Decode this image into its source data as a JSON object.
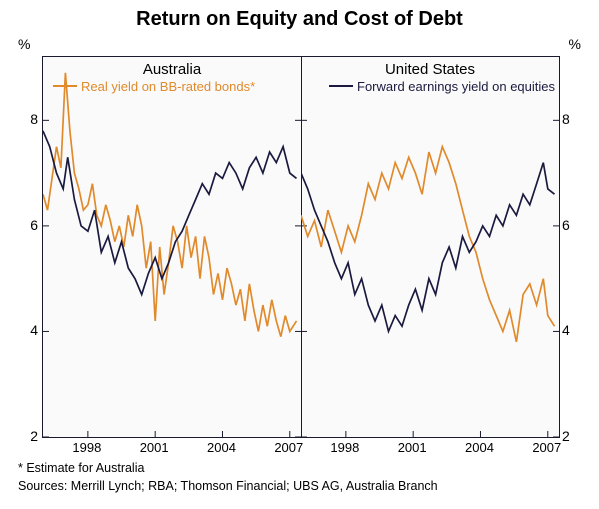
{
  "title": "Return on Equity and Cost of Debt",
  "title_fontsize": 20,
  "y_unit": "%",
  "ylim": [
    2,
    9.2
  ],
  "ytick_values": [
    2,
    4,
    6,
    8
  ],
  "x_range": [
    1996,
    2007.5
  ],
  "x_ticks": [
    1998,
    2001,
    2004,
    2007
  ],
  "background_color": "#fafafa",
  "border_color": "#1a1a2e",
  "panels": {
    "left": {
      "title": "Australia",
      "legend": {
        "text": "Real yield on BB-rated bonds*",
        "color": "#e08a2c"
      }
    },
    "right": {
      "title": "United States",
      "legend": {
        "text": "Forward earnings yield on equities",
        "color": "#1a1a40"
      }
    }
  },
  "series": {
    "aus_bonds": {
      "color": "#e08a2c",
      "width": 1.7,
      "data": [
        [
          1996.0,
          6.6
        ],
        [
          1996.2,
          6.3
        ],
        [
          1996.4,
          6.9
        ],
        [
          1996.6,
          7.5
        ],
        [
          1996.8,
          7.1
        ],
        [
          1997.0,
          8.9
        ],
        [
          1997.2,
          7.8
        ],
        [
          1997.4,
          7.0
        ],
        [
          1997.6,
          6.7
        ],
        [
          1997.8,
          6.3
        ],
        [
          1998.0,
          6.4
        ],
        [
          1998.2,
          6.8
        ],
        [
          1998.4,
          6.2
        ],
        [
          1998.6,
          6.0
        ],
        [
          1998.8,
          6.4
        ],
        [
          1999.0,
          6.1
        ],
        [
          1999.2,
          5.7
        ],
        [
          1999.4,
          6.0
        ],
        [
          1999.6,
          5.6
        ],
        [
          1999.8,
          6.2
        ],
        [
          2000.0,
          5.8
        ],
        [
          2000.2,
          6.4
        ],
        [
          2000.4,
          6.0
        ],
        [
          2000.6,
          5.2
        ],
        [
          2000.8,
          5.7
        ],
        [
          2001.0,
          4.2
        ],
        [
          2001.2,
          5.6
        ],
        [
          2001.4,
          4.7
        ],
        [
          2001.6,
          5.3
        ],
        [
          2001.8,
          6.0
        ],
        [
          2002.0,
          5.7
        ],
        [
          2002.2,
          5.2
        ],
        [
          2002.4,
          6.0
        ],
        [
          2002.6,
          5.4
        ],
        [
          2002.8,
          5.8
        ],
        [
          2003.0,
          5.0
        ],
        [
          2003.2,
          5.8
        ],
        [
          2003.4,
          5.4
        ],
        [
          2003.6,
          4.7
        ],
        [
          2003.8,
          5.1
        ],
        [
          2004.0,
          4.6
        ],
        [
          2004.2,
          5.2
        ],
        [
          2004.4,
          4.9
        ],
        [
          2004.6,
          4.5
        ],
        [
          2004.8,
          4.8
        ],
        [
          2005.0,
          4.2
        ],
        [
          2005.2,
          4.9
        ],
        [
          2005.4,
          4.4
        ],
        [
          2005.6,
          4.0
        ],
        [
          2005.8,
          4.5
        ],
        [
          2006.0,
          4.1
        ],
        [
          2006.2,
          4.6
        ],
        [
          2006.4,
          4.2
        ],
        [
          2006.6,
          3.9
        ],
        [
          2006.8,
          4.3
        ],
        [
          2007.0,
          4.0
        ],
        [
          2007.3,
          4.2
        ]
      ]
    },
    "aus_equities": {
      "color": "#1a1a40",
      "width": 1.7,
      "data": [
        [
          1996.0,
          7.8
        ],
        [
          1996.3,
          7.5
        ],
        [
          1996.6,
          7.0
        ],
        [
          1996.9,
          6.7
        ],
        [
          1997.1,
          7.3
        ],
        [
          1997.4,
          6.5
        ],
        [
          1997.7,
          6.0
        ],
        [
          1998.0,
          5.9
        ],
        [
          1998.3,
          6.3
        ],
        [
          1998.6,
          5.5
        ],
        [
          1998.9,
          5.8
        ],
        [
          1999.2,
          5.3
        ],
        [
          1999.5,
          5.7
        ],
        [
          1999.8,
          5.2
        ],
        [
          2000.1,
          5.0
        ],
        [
          2000.4,
          4.7
        ],
        [
          2000.7,
          5.1
        ],
        [
          2001.0,
          5.4
        ],
        [
          2001.3,
          5.0
        ],
        [
          2001.6,
          5.3
        ],
        [
          2001.9,
          5.7
        ],
        [
          2002.2,
          5.9
        ],
        [
          2002.5,
          6.2
        ],
        [
          2002.8,
          6.5
        ],
        [
          2003.1,
          6.8
        ],
        [
          2003.4,
          6.6
        ],
        [
          2003.7,
          7.0
        ],
        [
          2004.0,
          6.9
        ],
        [
          2004.3,
          7.2
        ],
        [
          2004.6,
          7.0
        ],
        [
          2004.9,
          6.7
        ],
        [
          2005.2,
          7.1
        ],
        [
          2005.5,
          7.3
        ],
        [
          2005.8,
          7.0
        ],
        [
          2006.1,
          7.4
        ],
        [
          2006.4,
          7.2
        ],
        [
          2006.7,
          7.5
        ],
        [
          2007.0,
          7.0
        ],
        [
          2007.3,
          6.9
        ]
      ]
    },
    "us_bonds": {
      "color": "#e08a2c",
      "width": 1.7,
      "data": [
        [
          1996.0,
          6.2
        ],
        [
          1996.3,
          5.8
        ],
        [
          1996.6,
          6.1
        ],
        [
          1996.9,
          5.6
        ],
        [
          1997.2,
          6.3
        ],
        [
          1997.5,
          5.9
        ],
        [
          1997.8,
          5.5
        ],
        [
          1998.1,
          6.0
        ],
        [
          1998.4,
          5.7
        ],
        [
          1998.7,
          6.2
        ],
        [
          1999.0,
          6.8
        ],
        [
          1999.3,
          6.5
        ],
        [
          1999.6,
          7.0
        ],
        [
          1999.9,
          6.7
        ],
        [
          2000.2,
          7.2
        ],
        [
          2000.5,
          6.9
        ],
        [
          2000.8,
          7.3
        ],
        [
          2001.1,
          7.0
        ],
        [
          2001.4,
          6.6
        ],
        [
          2001.7,
          7.4
        ],
        [
          2002.0,
          7.0
        ],
        [
          2002.3,
          7.5
        ],
        [
          2002.6,
          7.2
        ],
        [
          2002.9,
          6.8
        ],
        [
          2003.2,
          6.3
        ],
        [
          2003.5,
          5.8
        ],
        [
          2003.8,
          5.5
        ],
        [
          2004.1,
          5.0
        ],
        [
          2004.4,
          4.6
        ],
        [
          2004.7,
          4.3
        ],
        [
          2005.0,
          4.0
        ],
        [
          2005.3,
          4.4
        ],
        [
          2005.6,
          3.8
        ],
        [
          2005.9,
          4.7
        ],
        [
          2006.2,
          4.9
        ],
        [
          2006.5,
          4.5
        ],
        [
          2006.8,
          5.0
        ],
        [
          2007.0,
          4.3
        ],
        [
          2007.3,
          4.1
        ]
      ]
    },
    "us_equities": {
      "color": "#1a1a40",
      "width": 1.7,
      "data": [
        [
          1996.0,
          7.0
        ],
        [
          1996.3,
          6.7
        ],
        [
          1996.6,
          6.3
        ],
        [
          1996.9,
          6.0
        ],
        [
          1997.2,
          5.7
        ],
        [
          1997.5,
          5.3
        ],
        [
          1997.8,
          5.0
        ],
        [
          1998.1,
          5.3
        ],
        [
          1998.4,
          4.7
        ],
        [
          1998.7,
          5.0
        ],
        [
          1999.0,
          4.5
        ],
        [
          1999.3,
          4.2
        ],
        [
          1999.6,
          4.5
        ],
        [
          1999.9,
          4.0
        ],
        [
          2000.2,
          4.3
        ],
        [
          2000.5,
          4.1
        ],
        [
          2000.8,
          4.5
        ],
        [
          2001.1,
          4.8
        ],
        [
          2001.4,
          4.4
        ],
        [
          2001.7,
          5.0
        ],
        [
          2002.0,
          4.7
        ],
        [
          2002.3,
          5.3
        ],
        [
          2002.6,
          5.6
        ],
        [
          2002.9,
          5.2
        ],
        [
          2003.2,
          5.8
        ],
        [
          2003.5,
          5.5
        ],
        [
          2003.8,
          5.7
        ],
        [
          2004.1,
          6.0
        ],
        [
          2004.4,
          5.8
        ],
        [
          2004.7,
          6.2
        ],
        [
          2005.0,
          6.0
        ],
        [
          2005.3,
          6.4
        ],
        [
          2005.6,
          6.2
        ],
        [
          2005.9,
          6.6
        ],
        [
          2006.2,
          6.4
        ],
        [
          2006.5,
          6.8
        ],
        [
          2006.8,
          7.2
        ],
        [
          2007.0,
          6.7
        ],
        [
          2007.3,
          6.6
        ]
      ]
    }
  },
  "footnote": "*   Estimate for Australia",
  "sources": "Sources: Merrill Lynch; RBA; Thomson Financial; UBS AG, Australia Branch"
}
